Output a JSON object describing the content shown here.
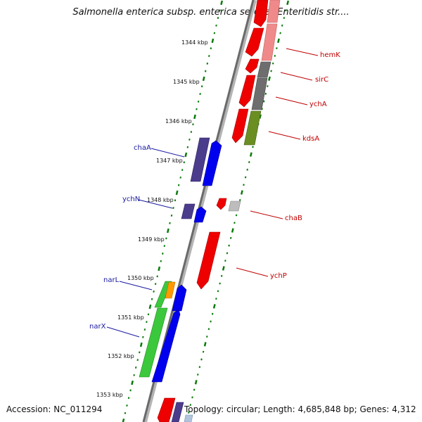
{
  "title": "Salmonella enterica subsp. enterica serovar Enteritidis str....",
  "footer": {
    "accession": "Accession: NC_011294",
    "topology": "Topology: circular; Length: 4,685,848 bp; Genes: 4,312"
  },
  "ruler_labels": [
    "1344 kbp",
    "1345 kbp",
    "1346 kbp",
    "1347 kbp",
    "1348 kbp",
    "1349 kbp",
    "1350 kbp",
    "1351 kbp",
    "1352 kbp",
    "1353 kbp"
  ],
  "genes_left": [
    "chaA",
    "ychN",
    "narL",
    "narX"
  ],
  "genes_right": [
    "hemK",
    "sirC",
    "ychA",
    "kdsA",
    "chaB",
    "ychP"
  ],
  "colors": {
    "forward_strand": "#0000ee",
    "forward_dark": "#4b3c8c",
    "reverse_strand": "#ee0000",
    "reverse_light": "#f08a8a",
    "grey_gene": "#7a7a7a",
    "olive_gene": "#6b8e23",
    "green_gene": "#3cc83c",
    "orange_gene": "#ff9900",
    "tick_color": "#0a7a0a"
  }
}
